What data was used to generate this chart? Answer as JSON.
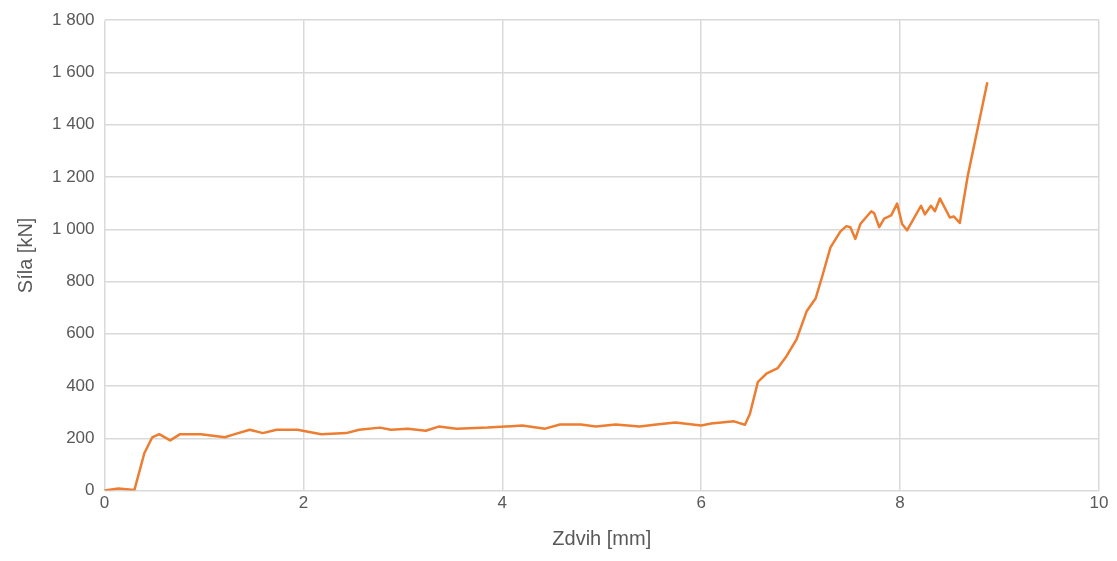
{
  "chart_data": {
    "type": "line",
    "xlabel": "Zdvih [mm]",
    "ylabel": "Síla [kN]",
    "xlim": [
      0,
      10
    ],
    "xticks": [
      0,
      2,
      4,
      6,
      8,
      10
    ],
    "ylim": [
      0,
      1800
    ],
    "yticks": [
      0,
      200,
      400,
      600,
      800,
      {
        "value": 1000,
        "label": "1 000"
      },
      {
        "value": 1200,
        "label": "1 200"
      },
      {
        "value": 1400,
        "label": "1 400"
      },
      {
        "value": 1600,
        "label": "1 600"
      },
      {
        "value": 1800,
        "label": "1 800"
      }
    ],
    "grid": true,
    "legend": false,
    "marker": "none",
    "line_style": "solid",
    "series": [
      {
        "color": "#ed7d31",
        "x": [
          0,
          0.14,
          0.3,
          0.4,
          0.48,
          0.55,
          0.66,
          0.76,
          0.97,
          1.21,
          1.31,
          1.46,
          1.59,
          1.73,
          1.94,
          2.18,
          2.43,
          2.56,
          2.77,
          2.88,
          3.05,
          3.23,
          3.36,
          3.54,
          3.85,
          4.2,
          4.43,
          4.58,
          4.79,
          4.94,
          5.14,
          5.38,
          5.55,
          5.74,
          6.0,
          6.1,
          6.33,
          6.44,
          6.49,
          6.57,
          6.66,
          6.77,
          6.85,
          6.96,
          7.06,
          7.15,
          7.22,
          7.3,
          7.4,
          7.46,
          7.5,
          7.55,
          7.6,
          7.71,
          7.74,
          7.79,
          7.84,
          7.91,
          7.97,
          8.02,
          8.07,
          8.21,
          8.25,
          8.31,
          8.35,
          8.4,
          8.5,
          8.54,
          8.6,
          8.68,
          8.875
        ],
        "values": [
          0,
          8,
          2,
          143,
          204,
          216,
          192,
          216,
          216,
          204,
          216,
          233,
          220,
          233,
          233,
          216,
          220,
          233,
          241,
          233,
          237,
          229,
          245,
          237,
          241,
          249,
          237,
          253,
          253,
          245,
          253,
          245,
          253,
          261,
          249,
          257,
          265,
          252,
          294,
          416,
          449,
          469,
          510,
          580,
          686,
          735,
          824,
          931,
          992,
          1012,
          1008,
          963,
          1020,
          1069,
          1061,
          1008,
          1041,
          1053,
          1098,
          1020,
          996,
          1090,
          1057,
          1090,
          1069,
          1118,
          1045,
          1049,
          1024,
          1204,
          1559
        ]
      }
    ]
  }
}
